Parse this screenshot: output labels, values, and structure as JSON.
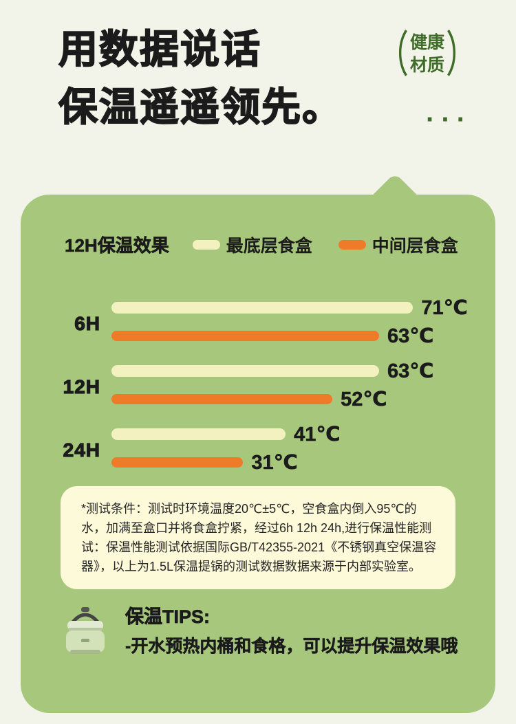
{
  "header": {
    "title_line1": "用数据说话",
    "title_line2": "保温遥遥领先。",
    "badge": {
      "open": "（",
      "line1": "健康",
      "line2": "材质",
      "close": "）"
    },
    "dots": "···"
  },
  "chart_data": {
    "type": "bar",
    "orientation": "horizontal",
    "title": "12H保温效果",
    "categories": [
      "6H",
      "12H",
      "24H"
    ],
    "series": [
      {
        "name": "最底层食盒",
        "color": "#f4f1c0",
        "values": [
          71,
          63,
          41
        ]
      },
      {
        "name": "中间层食盒",
        "color": "#ef7b28",
        "values": [
          63,
          52,
          31
        ]
      }
    ],
    "unit": "℃",
    "xlim": [
      0,
      80
    ],
    "legend_position": "top",
    "grid": false
  },
  "note": {
    "text": "*测试条件：测试时环境温度20℃±5℃，空食盒内倒入95℃的水，加满至盒口并将食盒拧紧，经过6h 12h 24h,进行保温性能测试：保温性能测试依据国际GB/T42355-2021《不锈钢真空保温容器》，以上为1.5L保温提锅的测试数据数据来源于内部实验室。"
  },
  "tips": {
    "title": "保温TIPS:",
    "line": "-开水预热内桶和食格，可以提升保温效果哦"
  },
  "colors": {
    "bg": "#f2f3e9",
    "panel": "#a7c77d",
    "ink": "#1b1b1b",
    "green": "#3f6c28",
    "note": "#fcfad8"
  }
}
